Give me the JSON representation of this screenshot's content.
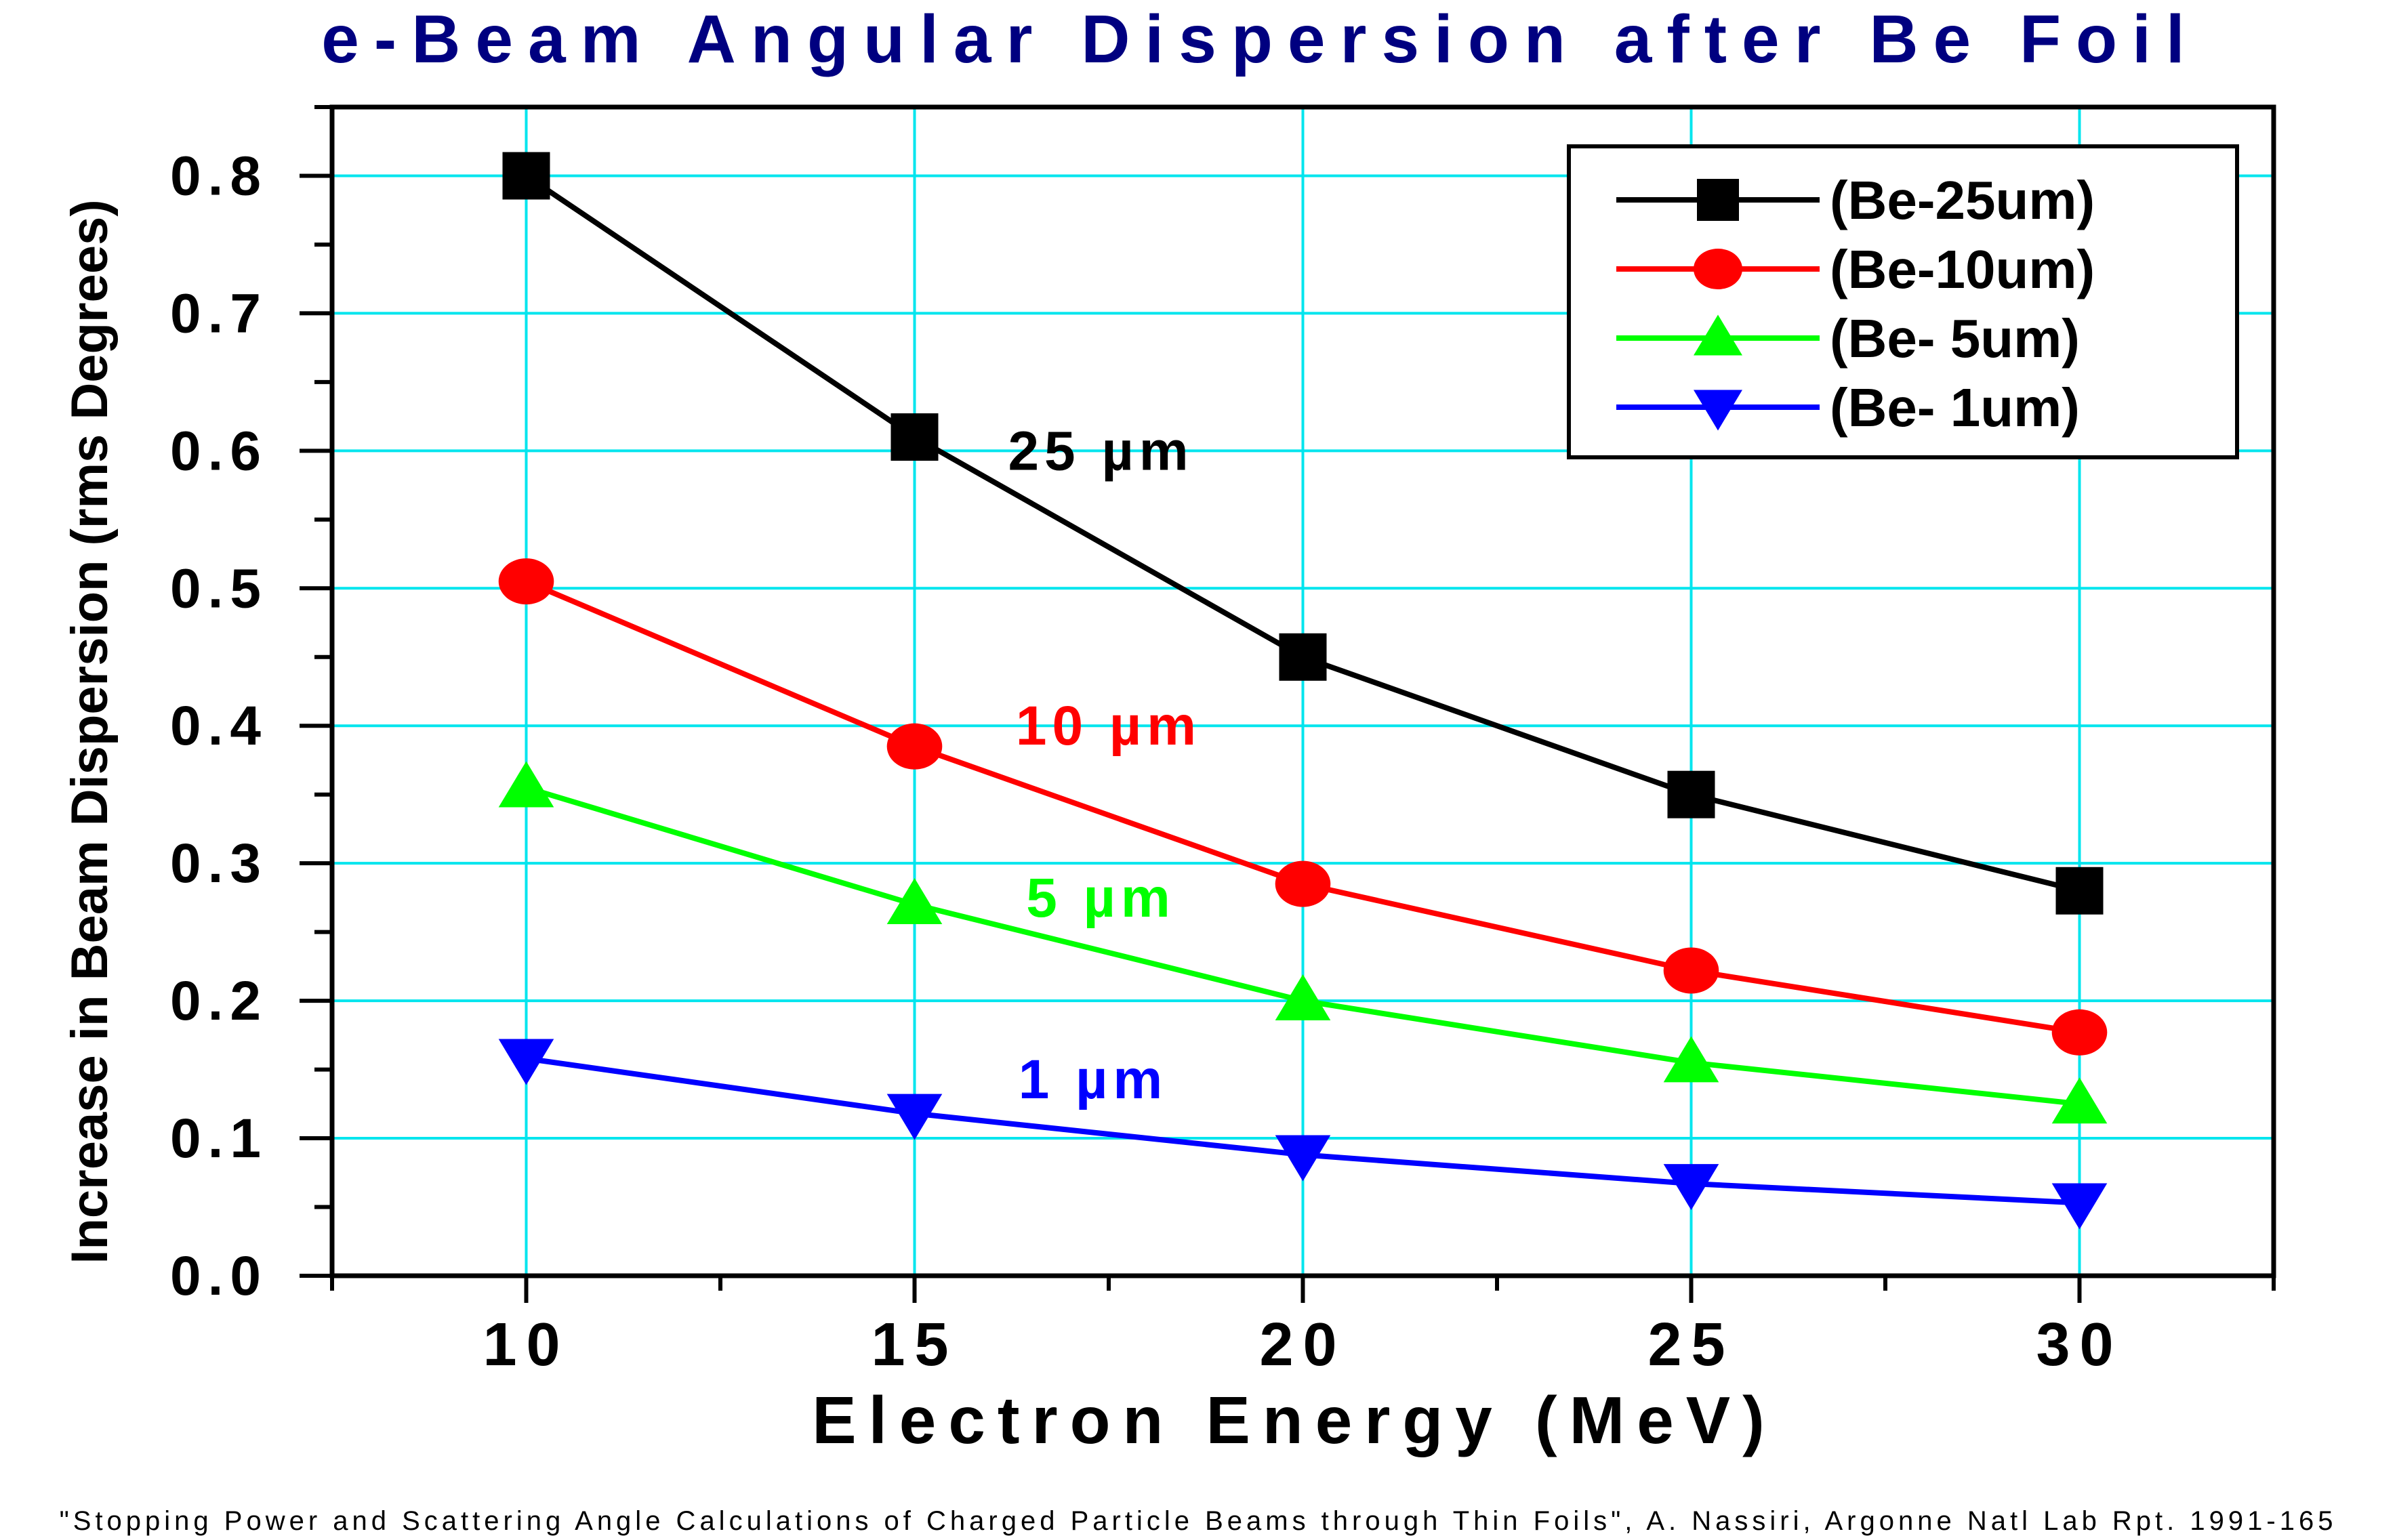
{
  "chart_data": {
    "type": "line",
    "title": "e-Beam Angular Dispersion after Be Foil",
    "xlabel": "Electron Energy (MeV)",
    "ylabel": "Increase in Beam Dispersion (rms Degrees)",
    "xlim": [
      7.5,
      32.5
    ],
    "ylim": [
      0,
      0.85
    ],
    "x_ticks": [
      10,
      15,
      20,
      25,
      30
    ],
    "x_tick_labels": [
      "10",
      "15",
      "20",
      "25",
      "30"
    ],
    "y_ticks": [
      0.0,
      0.1,
      0.2,
      0.3,
      0.4,
      0.5,
      0.6,
      0.7,
      0.8
    ],
    "y_tick_labels": [
      "0.0",
      "0.1",
      "0.2",
      "0.3",
      "0.4",
      "0.5",
      "0.6",
      "0.7",
      "0.8"
    ],
    "grid": true,
    "legend_position": "top-right",
    "x": [
      10,
      15,
      20,
      25,
      30
    ],
    "series": [
      {
        "name": "(Be-25um)",
        "values": [
          0.8,
          0.61,
          0.45,
          0.35,
          0.28
        ],
        "color": "#000000",
        "marker": "square",
        "annotation": "25 µm",
        "annotation_at": [
          17.4,
          0.6
        ]
      },
      {
        "name": "(Be-10um)",
        "values": [
          0.505,
          0.385,
          0.285,
          0.222,
          0.177
        ],
        "color": "#ff0000",
        "marker": "circle",
        "annotation": "10 µm",
        "annotation_at": [
          17.5,
          0.4
        ]
      },
      {
        "name": "(Be- 5um)",
        "values": [
          0.355,
          0.27,
          0.2,
          0.155,
          0.125
        ],
        "color": "#00ff00",
        "marker": "triangle-up",
        "annotation": "5 µm",
        "annotation_at": [
          17.4,
          0.275
        ]
      },
      {
        "name": "(Be- 1um)",
        "values": [
          0.158,
          0.118,
          0.088,
          0.067,
          0.053
        ],
        "color": "#0000ff",
        "marker": "triangle-down",
        "annotation": "1 µm",
        "annotation_at": [
          17.3,
          0.143
        ]
      }
    ],
    "citation": "\"Stopping Power and Scattering Angle Calculations of Charged Particle Beams through Thin Foils\", A. Nassiri, Argonne Natl Lab Rpt. 1991-165",
    "colors": {
      "title": "#000080",
      "grid": "#00e5ee",
      "axis": "#000000"
    }
  }
}
